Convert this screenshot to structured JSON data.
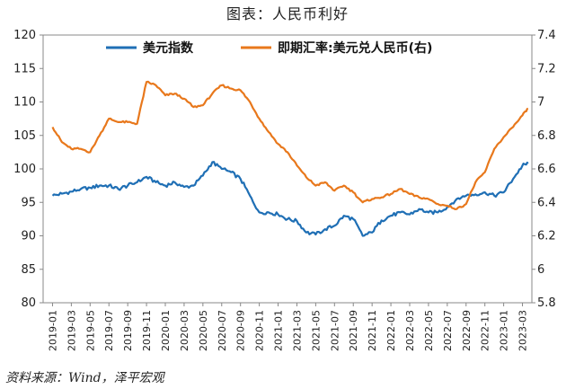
{
  "chart_data": {
    "type": "line",
    "title": "图表：人民币利好",
    "source": "资料来源：Wind，泽平宏观",
    "x_labels": [
      "2019-01",
      "2019-03",
      "2019-05",
      "2019-07",
      "2019-09",
      "2019-11",
      "2020-01",
      "2020-03",
      "2020-05",
      "2020-07",
      "2020-09",
      "2020-11",
      "2021-01",
      "2021-03",
      "2021-05",
      "2021-07",
      "2021-09",
      "2021-11",
      "2022-01",
      "2022-03",
      "2022-05",
      "2022-07",
      "2022-09",
      "2022-11",
      "2023-01",
      "2023-03"
    ],
    "left_axis": {
      "ylim": [
        80,
        120
      ],
      "ticks": [
        "80",
        "85",
        "90",
        "95",
        "100",
        "105",
        "110",
        "115",
        "120"
      ]
    },
    "right_axis": {
      "ylim": [
        5.8,
        7.4
      ],
      "ticks": [
        "5.8",
        "6",
        "6.2",
        "6.4",
        "6.6",
        "6.8",
        "7",
        "7.2",
        "7.4"
      ]
    },
    "series": [
      {
        "name": "美元指数",
        "axis": "left",
        "color": "#1f6fb5",
        "x": [
          0,
          0.5,
          1,
          1.5,
          2,
          2.5,
          3,
          3.5,
          4,
          4.5,
          5,
          5.5,
          6,
          6.5,
          7,
          7.5,
          8,
          8.5,
          9,
          9.5,
          10,
          10.5,
          11,
          11.5,
          12,
          12.5,
          13,
          13.5,
          14,
          14.5,
          15,
          15.5,
          16,
          16.5,
          17,
          17.5,
          18,
          18.5,
          19,
          19.5,
          20,
          20.5,
          21,
          21.5,
          22,
          22.5,
          23,
          23.5,
          24,
          24.5,
          25,
          25.3
        ],
        "values": [
          96.0,
          96.3,
          96.6,
          97.0,
          97.2,
          97.5,
          97.5,
          97.0,
          97.5,
          98.0,
          98.8,
          98.0,
          97.5,
          98.0,
          97.3,
          97.5,
          99.0,
          101.0,
          100.0,
          99.5,
          98.5,
          96.0,
          93.5,
          93.5,
          93.2,
          92.5,
          92.2,
          90.5,
          90.2,
          91.0,
          91.5,
          93.0,
          92.5,
          90.0,
          90.5,
          92.3,
          93.0,
          93.5,
          93.2,
          94.0,
          93.5,
          93.5,
          94.3,
          95.5,
          96.0,
          96.2,
          96.5,
          96.0,
          96.5,
          98.5,
          100.5,
          100.8
        ]
      },
      {
        "name": "即期汇率:美元兑人民币(右)",
        "axis": "right",
        "color": "#e8781c",
        "x": [
          0,
          0.5,
          1,
          1.5,
          2,
          2.5,
          3,
          3.5,
          4,
          4.5,
          5,
          5.5,
          6,
          6.5,
          7,
          7.5,
          8,
          8.5,
          9,
          9.5,
          10,
          10.5,
          11,
          11.5,
          12,
          12.5,
          13,
          13.5,
          14,
          14.5,
          15,
          15.5,
          16,
          16.5,
          17,
          17.5,
          18,
          18.5,
          19,
          19.5,
          20,
          20.5,
          21,
          21.5,
          22,
          22.5,
          23,
          23.5,
          24,
          24.5,
          25,
          25.3
        ],
        "values": [
          6.85,
          6.76,
          6.72,
          6.72,
          6.7,
          6.8,
          6.9,
          6.88,
          6.88,
          6.87,
          7.12,
          7.1,
          7.04,
          7.05,
          7.02,
          6.97,
          6.98,
          7.05,
          7.1,
          7.08,
          7.07,
          7.0,
          6.9,
          6.82,
          6.75,
          6.7,
          6.62,
          6.55,
          6.5,
          6.52,
          6.47,
          6.5,
          6.46,
          6.4,
          6.42,
          6.43,
          6.45,
          6.48,
          6.45,
          6.43,
          6.42,
          6.39,
          6.38,
          6.36,
          6.39,
          6.52,
          6.58,
          6.72,
          6.79,
          6.85,
          6.92,
          6.96
        ]
      }
    ]
  }
}
